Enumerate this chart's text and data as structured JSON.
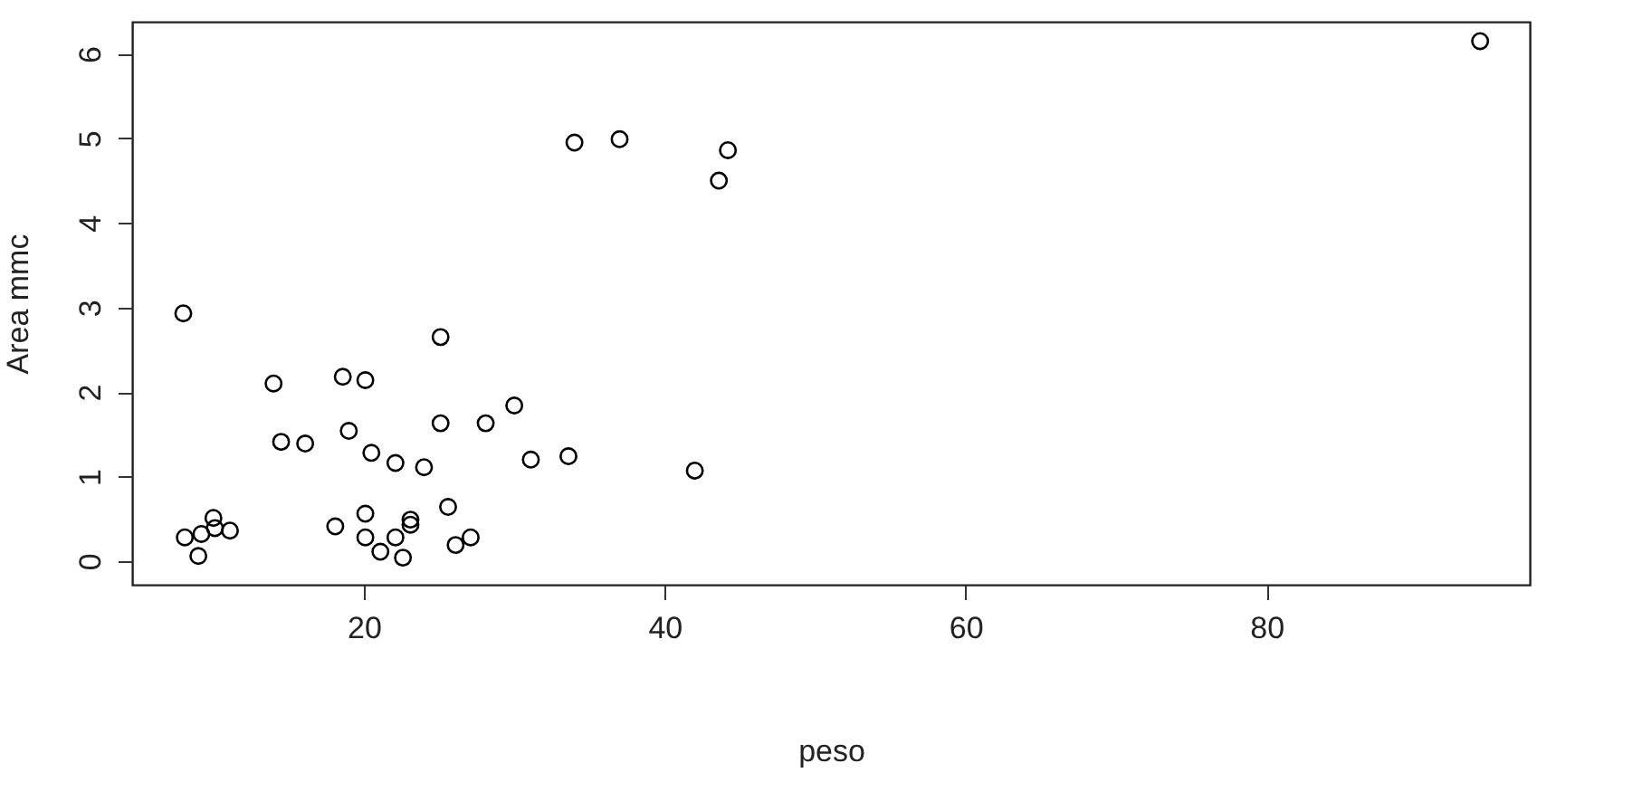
{
  "chart_data": {
    "type": "scatter",
    "xlabel": "peso",
    "ylabel": "Area mmc",
    "marker": "circle",
    "grid": false,
    "x": [
      8,
      14,
      18.6,
      20.1,
      25.1,
      14.5,
      16.1,
      19,
      20.5,
      22.1,
      24,
      25.1,
      28.1,
      30,
      31.1,
      33.6,
      42,
      8.1,
      9.2,
      10,
      10.1,
      11.1,
      9,
      18.1,
      20.1,
      20.1,
      21.1,
      22.1,
      22.6,
      23.1,
      23.1,
      25.6,
      26.1,
      27.1,
      34,
      37,
      44.2,
      43.6,
      94.2
    ],
    "series": [
      {
        "color": "#000000",
        "values": [
          2.93,
          2.1,
          2.18,
          2.14,
          2.65,
          1.41,
          1.39,
          1.54,
          1.28,
          1.16,
          1.11,
          1.63,
          1.63,
          1.84,
          1.2,
          1.24,
          1.07,
          0.28,
          0.32,
          0.51,
          0.39,
          0.36,
          0.06,
          0.41,
          0.56,
          0.28,
          0.11,
          0.28,
          0.04,
          0.49,
          0.43,
          0.64,
          0.19,
          0.28,
          4.95,
          4.99,
          4.86,
          4.5,
          6.15
        ]
      }
    ],
    "xlim": [
      4.6,
      97.5
    ],
    "ylim": [
      -0.28,
      6.38
    ],
    "xticks": [
      20,
      40,
      60,
      80
    ],
    "yticks": [
      0,
      1,
      2,
      3,
      4,
      5,
      6
    ]
  }
}
